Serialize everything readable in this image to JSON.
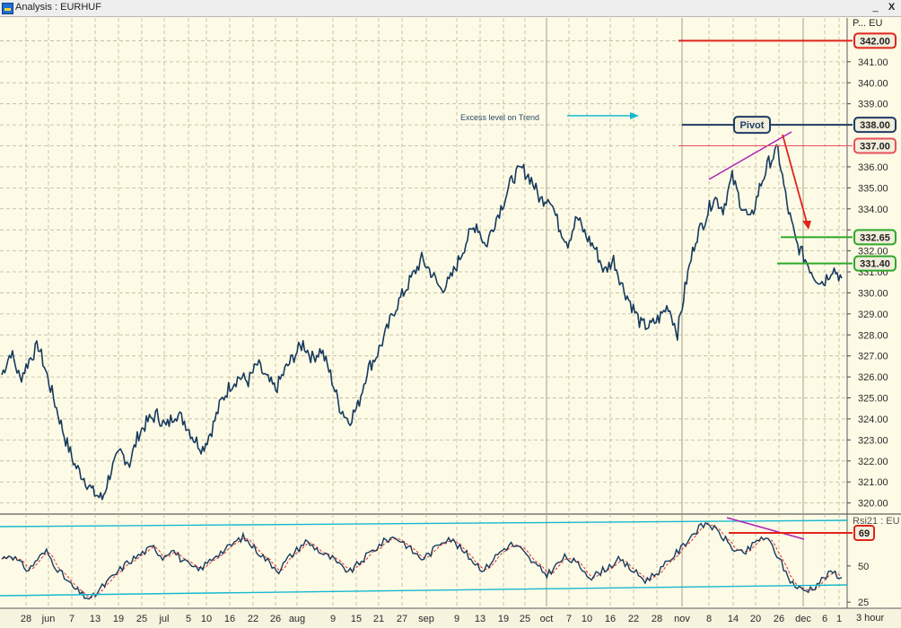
{
  "window": {
    "title": "Analysis : EURHUF",
    "minimize_glyph": "_",
    "close_glyph": "X"
  },
  "chart_data": [
    {
      "type": "line",
      "instrument": "EURHUF",
      "header_label": "P... EU",
      "ylim": [
        319.6,
        343.0
      ],
      "y_ticks": [
        320,
        321,
        322,
        323,
        324,
        325,
        326,
        327,
        328,
        329,
        330,
        331,
        332,
        333,
        334,
        335,
        336,
        337,
        338,
        339,
        340,
        341,
        342
      ],
      "y_tick_labels": [
        "320.00",
        "321.00",
        "322.00",
        "323.00",
        "324.00",
        "325.00",
        "326.00",
        "327.00",
        "328.00",
        "329.00",
        "330.00",
        "331.00",
        "332.00",
        "",
        "334.00",
        "335.00",
        "336.00",
        "",
        "",
        "339.00",
        "340.00",
        "341.00",
        ""
      ],
      "x_tick_labels": [
        "28",
        "jun",
        "7",
        "13",
        "19",
        "25",
        "jul",
        "5",
        "10",
        "16",
        "22",
        "26",
        "aug",
        "9",
        "15",
        "21",
        "27",
        "sep",
        "9",
        "13",
        "19",
        "25",
        "oct",
        "7",
        "10",
        "16",
        "22",
        "28",
        "nov",
        "8",
        "14",
        "20",
        "26",
        "dec",
        "6",
        "1"
      ],
      "x_tick_positions": [
        29,
        54,
        80,
        106,
        132,
        158,
        183,
        210,
        230,
        256,
        282,
        307,
        331,
        371,
        397,
        422,
        448,
        475,
        509,
        535,
        561,
        585,
        609,
        634,
        654,
        680,
        706,
        732,
        760,
        790,
        817,
        842,
        868,
        895,
        919,
        935
      ],
      "time_axis_label": "3 hour",
      "series": [
        {
          "values": [
            326.1,
            327.2,
            325.9,
            326.8,
            327.5,
            326.0,
            324.5,
            323.0,
            321.8,
            321.2,
            320.5,
            320.2,
            321.6,
            322.4,
            321.9,
            323.3,
            323.9,
            324.2,
            323.6,
            324.3,
            323.9,
            323.1,
            322.6,
            323.5,
            324.8,
            325.6,
            326.0,
            325.8,
            326.6,
            325.9,
            325.4,
            326.3,
            327.0,
            327.6,
            326.9,
            327.3,
            326.1,
            324.6,
            323.9,
            324.6,
            326.3,
            327.0,
            328.0,
            329.2,
            330.0,
            330.8,
            331.6,
            331.0,
            330.2,
            330.5,
            331.5,
            332.6,
            333.3,
            332.2,
            333.4,
            334.4,
            335.5,
            335.9,
            335.4,
            334.4,
            334.6,
            333.2,
            332.4,
            333.6,
            332.7,
            332.1,
            331.0,
            331.6,
            330.3,
            329.4,
            328.5,
            328.4,
            328.8,
            329.4,
            328.1,
            330.6,
            332.6,
            333.5,
            334.6,
            334.0,
            335.5,
            334.2,
            333.4,
            335.0,
            336.2,
            336.8,
            334.2,
            332.4,
            331.6,
            330.8,
            330.5,
            331.2,
            330.7
          ]
        }
      ],
      "levels": [
        {
          "label": "342.00",
          "value": 342.0,
          "color": "#e0241b"
        },
        {
          "label": "338.00",
          "value": 338.0,
          "color": "#1e3b63",
          "tag": "Pivot"
        },
        {
          "label": "337.00",
          "value": 337.0,
          "color": "#e8505a"
        },
        {
          "label": "332.65",
          "value": 332.65,
          "color": "#2fa82a"
        },
        {
          "label": "331.40",
          "value": 331.4,
          "color": "#2fa82a"
        }
      ],
      "annotations": [
        {
          "text": "Excess level on Trend",
          "color": "#16b8d0"
        },
        {
          "text": "Pivot"
        }
      ],
      "colors": {
        "price": "#173a5e",
        "background": "#fdfbe6",
        "grid": "#b9b19a",
        "wedge": "#b020b8",
        "arrow": "#e0241b"
      }
    },
    {
      "type": "line",
      "indicator": "Rsi21",
      "header_label": "Rsi21 : EU",
      "ylim": [
        22,
        84
      ],
      "y_tick_labels": [
        "69",
        "50",
        "25"
      ],
      "y_ticks": [
        69,
        50,
        25
      ],
      "series": [
        {
          "values": [
            55,
            58,
            52,
            47,
            55,
            60,
            50,
            42,
            35,
            30,
            27,
            34,
            40,
            46,
            52,
            56,
            60,
            63,
            56,
            62,
            55,
            50,
            47,
            52,
            58,
            61,
            66,
            70,
            64,
            58,
            52,
            47,
            55,
            61,
            67,
            63,
            58,
            55,
            49,
            46,
            52,
            58,
            63,
            68,
            70,
            66,
            60,
            55,
            59,
            66,
            70,
            64,
            58,
            52,
            47,
            55,
            61,
            65,
            62,
            55,
            49,
            44,
            50,
            56,
            53,
            48,
            42,
            46,
            50,
            54,
            50,
            45,
            40,
            44,
            49,
            56,
            62,
            70,
            76,
            80,
            74,
            68,
            61,
            58,
            64,
            70,
            66,
            55,
            42,
            35,
            33,
            36,
            42,
            46,
            42
          ]
        }
      ],
      "overbought_label": "69",
      "colors": {
        "rsi": "#173a5e",
        "signal": "#e03030",
        "channel": "#16b8d0",
        "divergence": "#b020b8"
      }
    }
  ]
}
